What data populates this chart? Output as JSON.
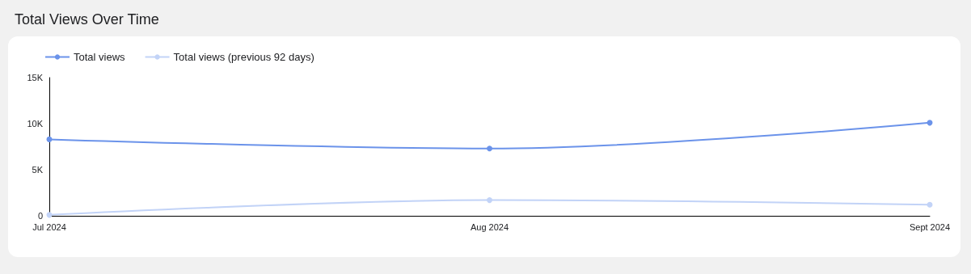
{
  "chart_data": {
    "type": "line",
    "title": "Total Views Over Time",
    "categories": [
      "Jul 2024",
      "Aug 2024",
      "Sept 2024"
    ],
    "series": [
      {
        "name": "Total views",
        "color": "#6b93ea",
        "values": [
          8300,
          7300,
          10100
        ]
      },
      {
        "name": "Total views (previous 92 days)",
        "color": "#c2d3f7",
        "values": [
          100,
          1700,
          1200
        ]
      }
    ],
    "ylim": [
      0,
      15000
    ],
    "yticks": [
      0,
      {
        "value": 5000,
        "label": "5K"
      },
      {
        "value": 10000,
        "label": "10K"
      },
      {
        "value": 15000,
        "label": "15K"
      }
    ],
    "grid": false,
    "legend": "top left",
    "marker": "circle",
    "line_style": "solid"
  }
}
